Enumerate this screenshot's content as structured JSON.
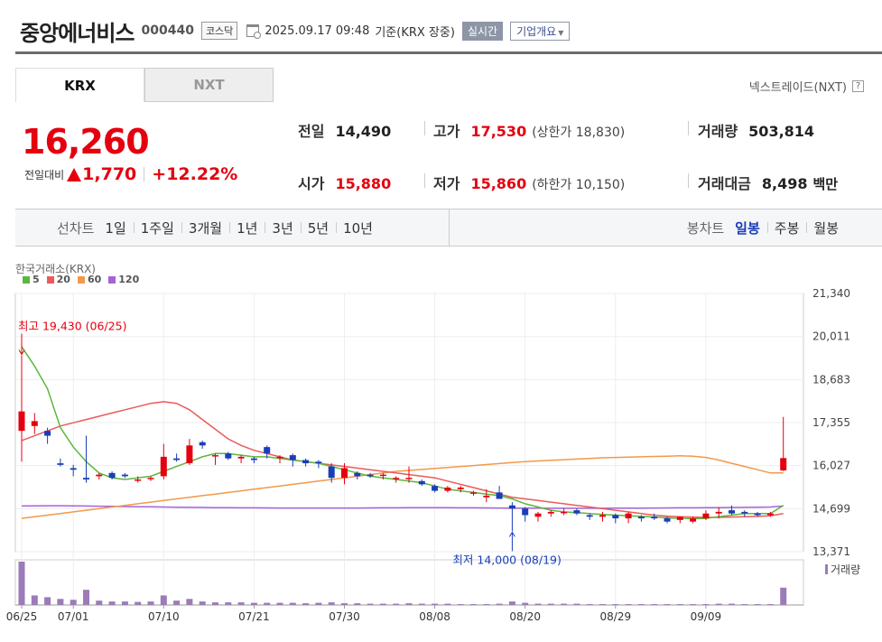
{
  "header": {
    "company_name": "중앙에너비스",
    "stock_code": "000440",
    "market_badge": "코스닥",
    "timestamp": "2025.09.17 09:48",
    "timestamp_note": "기준(KRX 장중)",
    "realtime_label": "실시간",
    "overview_label": "기업개요"
  },
  "tabs": [
    {
      "label": "KRX",
      "active": true
    },
    {
      "label": "NXT",
      "active": false
    }
  ],
  "nxt_link": "넥스트레이드(NXT)",
  "help_glyph": "?",
  "quote": {
    "price": "16,260",
    "change_label": "전일대비",
    "change_value": "1,770",
    "change_pct": "+12.22%"
  },
  "stats": {
    "prev_close_label": "전일",
    "prev_close": "14,490",
    "high_label": "고가",
    "high": "17,530",
    "upper_limit_label": "상한가",
    "upper_limit": "18,830",
    "volume_label": "거래량",
    "volume": "503,814",
    "open_label": "시가",
    "open": "15,880",
    "low_label": "저가",
    "low": "15,860",
    "lower_limit_label": "하한가",
    "lower_limit": "10,150",
    "value_label": "거래대금",
    "value": "8,498",
    "value_unit": "백만"
  },
  "period_bar": {
    "line_chart_label": "선차트",
    "periods": [
      "1일",
      "1주일",
      "3개월",
      "1년",
      "3년",
      "5년",
      "10년"
    ],
    "candle_chart_label": "봉차트",
    "candles": [
      {
        "label": "일봉",
        "active": true
      },
      {
        "label": "주봉",
        "active": false
      },
      {
        "label": "월봉",
        "active": false
      }
    ]
  },
  "colors": {
    "up": "#e4000f",
    "down": "#1a3eb8",
    "ma5": "#5cb73d",
    "ma20": "#ec5a5a",
    "ma60": "#f2994a",
    "ma120": "#a463d6",
    "volume": "#9b7bb8"
  },
  "chart_data": {
    "type": "candlestick",
    "source_label": "한국거래소(KRX)",
    "legend": [
      {
        "name": "5",
        "color": "#5cb73d"
      },
      {
        "name": "20",
        "color": "#ec5a5a"
      },
      {
        "name": "60",
        "color": "#f2994a"
      },
      {
        "name": "120",
        "color": "#a463d6"
      }
    ],
    "y_ticks": [
      "21,340",
      "20,011",
      "18,683",
      "17,355",
      "16,027",
      "14,699",
      "13,371"
    ],
    "y_tick_values": [
      21340,
      20011,
      18683,
      17355,
      16027,
      14699,
      13371
    ],
    "ylim": [
      13371,
      21340
    ],
    "x_ticks": [
      "06/25",
      "07/01",
      "07/10",
      "07/21",
      "07/30",
      "08/08",
      "08/20",
      "08/29",
      "09/09"
    ],
    "x_tick_index": [
      0,
      4,
      11,
      18,
      25,
      32,
      39,
      46,
      53
    ],
    "annotations": {
      "high": {
        "text": "최고 19,430 (06/25)",
        "index": 0,
        "value": 19430
      },
      "low": {
        "text": "최저 14,000 (08/19)",
        "index": 38,
        "value": 14000
      }
    },
    "volume_label": "거래량",
    "candles": [
      {
        "o": 17100,
        "h": 19430,
        "l": 16150,
        "c": 17700
      },
      {
        "o": 17250,
        "h": 17650,
        "l": 17000,
        "c": 17400
      },
      {
        "o": 17100,
        "h": 17200,
        "l": 16700,
        "c": 16950
      },
      {
        "o": 16100,
        "h": 16250,
        "l": 16000,
        "c": 16050
      },
      {
        "o": 15950,
        "h": 16050,
        "l": 15700,
        "c": 15900
      },
      {
        "o": 15650,
        "h": 16950,
        "l": 15500,
        "c": 15600
      },
      {
        "o": 15700,
        "h": 15800,
        "l": 15600,
        "c": 15750
      },
      {
        "o": 15800,
        "h": 15850,
        "l": 15600,
        "c": 15650
      },
      {
        "o": 15750,
        "h": 15800,
        "l": 15650,
        "c": 15700
      },
      {
        "o": 15600,
        "h": 15700,
        "l": 15500,
        "c": 15600
      },
      {
        "o": 15650,
        "h": 15700,
        "l": 15550,
        "c": 15650
      },
      {
        "o": 15700,
        "h": 16700,
        "l": 15600,
        "c": 16300
      },
      {
        "o": 16250,
        "h": 16400,
        "l": 16150,
        "c": 16200
      },
      {
        "o": 16100,
        "h": 16850,
        "l": 16050,
        "c": 16650
      },
      {
        "o": 16750,
        "h": 16800,
        "l": 16550,
        "c": 16650
      },
      {
        "o": 16350,
        "h": 16400,
        "l": 16050,
        "c": 16350
      },
      {
        "o": 16400,
        "h": 16450,
        "l": 16200,
        "c": 16250
      },
      {
        "o": 16250,
        "h": 16350,
        "l": 16100,
        "c": 16300
      },
      {
        "o": 16250,
        "h": 16300,
        "l": 16100,
        "c": 16200
      },
      {
        "o": 16600,
        "h": 16650,
        "l": 16250,
        "c": 16400
      },
      {
        "o": 16300,
        "h": 16350,
        "l": 16100,
        "c": 16300
      },
      {
        "o": 16350,
        "h": 16400,
        "l": 16000,
        "c": 16200
      },
      {
        "o": 16200,
        "h": 16250,
        "l": 16000,
        "c": 16100
      },
      {
        "o": 16150,
        "h": 16200,
        "l": 15950,
        "c": 16100
      },
      {
        "o": 16000,
        "h": 16100,
        "l": 15500,
        "c": 15650
      },
      {
        "o": 15650,
        "h": 16100,
        "l": 15450,
        "c": 15950
      },
      {
        "o": 15800,
        "h": 15850,
        "l": 15600,
        "c": 15700
      },
      {
        "o": 15750,
        "h": 15800,
        "l": 15650,
        "c": 15700
      },
      {
        "o": 15750,
        "h": 15800,
        "l": 15600,
        "c": 15750
      },
      {
        "o": 15650,
        "h": 15700,
        "l": 15500,
        "c": 15650
      },
      {
        "o": 15650,
        "h": 16000,
        "l": 15500,
        "c": 15650
      },
      {
        "o": 15550,
        "h": 15600,
        "l": 15400,
        "c": 15450
      },
      {
        "o": 15400,
        "h": 15450,
        "l": 15200,
        "c": 15250
      },
      {
        "o": 15250,
        "h": 15400,
        "l": 15200,
        "c": 15350
      },
      {
        "o": 15300,
        "h": 15400,
        "l": 15200,
        "c": 15350
      },
      {
        "o": 15200,
        "h": 15250,
        "l": 15100,
        "c": 15200
      },
      {
        "o": 15050,
        "h": 15300,
        "l": 14900,
        "c": 15100
      },
      {
        "o": 15200,
        "h": 15400,
        "l": 15000,
        "c": 15000
      },
      {
        "o": 14800,
        "h": 14900,
        "l": 14000,
        "c": 14700
      },
      {
        "o": 14700,
        "h": 14750,
        "l": 14300,
        "c": 14500
      },
      {
        "o": 14450,
        "h": 14600,
        "l": 14300,
        "c": 14550
      },
      {
        "o": 14550,
        "h": 14650,
        "l": 14450,
        "c": 14600
      },
      {
        "o": 14600,
        "h": 14700,
        "l": 14500,
        "c": 14600
      },
      {
        "o": 14650,
        "h": 14700,
        "l": 14500,
        "c": 14550
      },
      {
        "o": 14500,
        "h": 14550,
        "l": 14350,
        "c": 14450
      },
      {
        "o": 14450,
        "h": 14600,
        "l": 14300,
        "c": 14500
      },
      {
        "o": 14500,
        "h": 14550,
        "l": 14250,
        "c": 14400
      },
      {
        "o": 14400,
        "h": 14600,
        "l": 14250,
        "c": 14550
      },
      {
        "o": 14450,
        "h": 14500,
        "l": 14300,
        "c": 14400
      },
      {
        "o": 14450,
        "h": 14550,
        "l": 14350,
        "c": 14400
      },
      {
        "o": 14400,
        "h": 14450,
        "l": 14250,
        "c": 14300
      },
      {
        "o": 14350,
        "h": 14450,
        "l": 14250,
        "c": 14450
      },
      {
        "o": 14300,
        "h": 14450,
        "l": 14250,
        "c": 14400
      },
      {
        "o": 14400,
        "h": 14650,
        "l": 14350,
        "c": 14550
      },
      {
        "o": 14550,
        "h": 14750,
        "l": 14400,
        "c": 14600
      },
      {
        "o": 14650,
        "h": 14800,
        "l": 14500,
        "c": 14550
      },
      {
        "o": 14600,
        "h": 14650,
        "l": 14450,
        "c": 14550
      },
      {
        "o": 14550,
        "h": 14600,
        "l": 14450,
        "c": 14500
      },
      {
        "o": 14500,
        "h": 14600,
        "l": 14450,
        "c": 14550
      },
      {
        "o": 15880,
        "h": 17530,
        "l": 15860,
        "c": 16260
      }
    ],
    "ma": {
      "5": [
        19700,
        19100,
        18400,
        17200,
        16600,
        16150,
        15800,
        15650,
        15600,
        15650,
        15700,
        15850,
        16000,
        16150,
        16300,
        16400,
        16400,
        16350,
        16300,
        16300,
        16250,
        16200,
        16150,
        16100,
        16000,
        15900,
        15800,
        15700,
        15650,
        15600,
        15550,
        15500,
        15400,
        15300,
        15250,
        15200,
        15150,
        15100,
        15000,
        14850,
        14750,
        14650,
        14600,
        14580,
        14550,
        14520,
        14500,
        14480,
        14460,
        14440,
        14420,
        14400,
        14390,
        14400,
        14450,
        14500,
        14550,
        14550,
        14550,
        14800
      ],
      "20": [
        16800,
        16950,
        17100,
        17250,
        17350,
        17450,
        17550,
        17650,
        17750,
        17850,
        17950,
        18000,
        17950,
        17750,
        17450,
        17150,
        16850,
        16650,
        16500,
        16400,
        16300,
        16200,
        16150,
        16100,
        16050,
        16000,
        15950,
        15900,
        15850,
        15800,
        15750,
        15700,
        15650,
        15550,
        15450,
        15350,
        15250,
        15150,
        15050,
        15000,
        14950,
        14900,
        14850,
        14800,
        14750,
        14700,
        14650,
        14600,
        14550,
        14500,
        14470,
        14450,
        14440,
        14430,
        14430,
        14440,
        14450,
        14460,
        14480,
        14550
      ],
      "60": [
        14400,
        14450,
        14500,
        14550,
        14600,
        14650,
        14700,
        14750,
        14800,
        14850,
        14900,
        14950,
        15000,
        15050,
        15100,
        15150,
        15200,
        15250,
        15300,
        15350,
        15400,
        15450,
        15500,
        15550,
        15600,
        15650,
        15700,
        15750,
        15800,
        15850,
        15880,
        15910,
        15940,
        15970,
        16000,
        16030,
        16060,
        16090,
        16120,
        16150,
        16170,
        16190,
        16210,
        16230,
        16250,
        16270,
        16280,
        16290,
        16300,
        16310,
        16320,
        16330,
        16320,
        16280,
        16200,
        16100,
        16000,
        15900,
        15800,
        15800
      ],
      "120": [
        14780,
        14785,
        14790,
        14790,
        14785,
        14780,
        14775,
        14770,
        14765,
        14760,
        14755,
        14750,
        14745,
        14740,
        14735,
        14730,
        14728,
        14726,
        14724,
        14722,
        14720,
        14720,
        14720,
        14720,
        14720,
        14720,
        14720,
        14722,
        14724,
        14726,
        14728,
        14730,
        14730,
        14728,
        14726,
        14724,
        14722,
        14720,
        14718,
        14716,
        14714,
        14712,
        14710,
        14710,
        14710,
        14712,
        14714,
        14716,
        14718,
        14720,
        14722,
        14724,
        14726,
        14728,
        14730,
        14735,
        14740,
        14745,
        14750,
        14780
      ]
    },
    "volumes": [
      100,
      22,
      18,
      14,
      12,
      35,
      10,
      8,
      8,
      7,
      8,
      22,
      10,
      14,
      8,
      6,
      6,
      6,
      5,
      5,
      5,
      5,
      4,
      5,
      6,
      4,
      4,
      3,
      3,
      3,
      4,
      3,
      3,
      3,
      2,
      2,
      2,
      3,
      8,
      5,
      3,
      3,
      3,
      3,
      2,
      2,
      2,
      2,
      2,
      2,
      2,
      2,
      2,
      2,
      3,
      3,
      2,
      2,
      2,
      40
    ]
  }
}
